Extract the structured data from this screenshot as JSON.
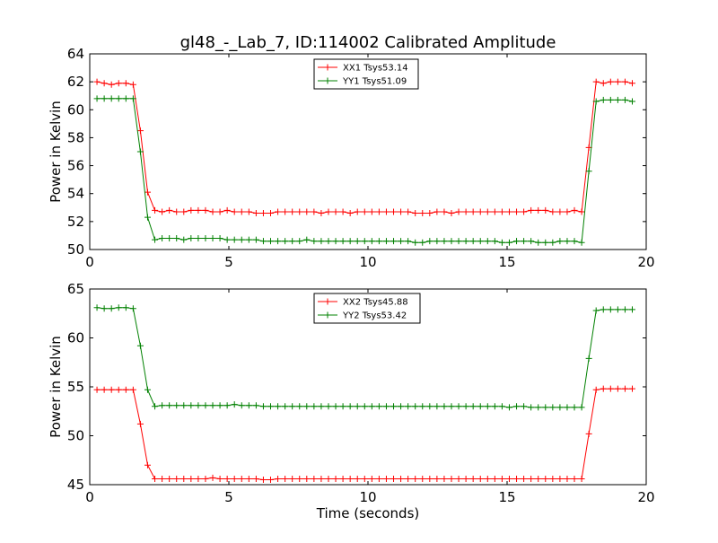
{
  "chart_data": [
    {
      "type": "line",
      "title": "gl48_-_Lab_7, ID:114002 Calibrated Amplitude",
      "xlabel": "",
      "ylabel": "Power in Kelvin",
      "xlim": [
        0,
        20
      ],
      "ylim": [
        50,
        64
      ],
      "xticks": [
        0,
        5,
        10,
        15,
        20
      ],
      "yticks": [
        50,
        52,
        54,
        56,
        58,
        60,
        62,
        64
      ],
      "grid": false,
      "legend_position": "top-center",
      "x": [
        0.26,
        0.52,
        0.78,
        1.04,
        1.3,
        1.56,
        1.82,
        2.08,
        2.34,
        2.6,
        2.86,
        3.12,
        3.38,
        3.64,
        3.9,
        4.16,
        4.42,
        4.68,
        4.94,
        5.2,
        5.46,
        5.72,
        5.98,
        6.24,
        6.5,
        6.76,
        7.02,
        7.28,
        7.54,
        7.8,
        8.06,
        8.32,
        8.58,
        8.84,
        9.1,
        9.36,
        9.62,
        9.88,
        10.14,
        10.4,
        10.66,
        10.92,
        11.18,
        11.44,
        11.7,
        11.96,
        12.22,
        12.48,
        12.74,
        13.0,
        13.26,
        13.52,
        13.78,
        14.04,
        14.3,
        14.56,
        14.82,
        15.08,
        15.34,
        15.6,
        15.86,
        16.12,
        16.38,
        16.64,
        16.9,
        17.16,
        17.42,
        17.68,
        17.94,
        18.2,
        18.46,
        18.72,
        18.98,
        19.24,
        19.5
      ],
      "series": [
        {
          "name": "XX1 Tsys53.14",
          "color": "#ff0000",
          "values": [
            62.0,
            61.9,
            61.8,
            61.9,
            61.9,
            61.8,
            58.5,
            54.1,
            52.8,
            52.7,
            52.8,
            52.7,
            52.7,
            52.8,
            52.8,
            52.8,
            52.7,
            52.7,
            52.8,
            52.7,
            52.7,
            52.7,
            52.6,
            52.6,
            52.6,
            52.7,
            52.7,
            52.7,
            52.7,
            52.7,
            52.7,
            52.6,
            52.7,
            52.7,
            52.7,
            52.6,
            52.7,
            52.7,
            52.7,
            52.7,
            52.7,
            52.7,
            52.7,
            52.7,
            52.6,
            52.6,
            52.6,
            52.7,
            52.7,
            52.6,
            52.7,
            52.7,
            52.7,
            52.7,
            52.7,
            52.7,
            52.7,
            52.7,
            52.7,
            52.7,
            52.8,
            52.8,
            52.8,
            52.7,
            52.7,
            52.7,
            52.8,
            52.7,
            57.3,
            62.0,
            61.9,
            62.0,
            62.0,
            62.0,
            61.9
          ]
        },
        {
          "name": "YY1 Tsys51.09",
          "color": "#008000",
          "values": [
            60.8,
            60.8,
            60.8,
            60.8,
            60.8,
            60.8,
            57.0,
            52.3,
            50.7,
            50.8,
            50.8,
            50.8,
            50.7,
            50.8,
            50.8,
            50.8,
            50.8,
            50.8,
            50.7,
            50.7,
            50.7,
            50.7,
            50.7,
            50.6,
            50.6,
            50.6,
            50.6,
            50.6,
            50.6,
            50.7,
            50.6,
            50.6,
            50.6,
            50.6,
            50.6,
            50.6,
            50.6,
            50.6,
            50.6,
            50.6,
            50.6,
            50.6,
            50.6,
            50.6,
            50.5,
            50.5,
            50.6,
            50.6,
            50.6,
            50.6,
            50.6,
            50.6,
            50.6,
            50.6,
            50.6,
            50.6,
            50.5,
            50.5,
            50.6,
            50.6,
            50.6,
            50.5,
            50.5,
            50.5,
            50.6,
            50.6,
            50.6,
            50.5,
            55.6,
            60.6,
            60.7,
            60.7,
            60.7,
            60.7,
            60.6
          ]
        }
      ]
    },
    {
      "type": "line",
      "title": "",
      "xlabel": "Time (seconds)",
      "ylabel": "Power in Kelvin",
      "xlim": [
        0,
        20
      ],
      "ylim": [
        45,
        65
      ],
      "xticks": [
        0,
        5,
        10,
        15,
        20
      ],
      "yticks": [
        45,
        50,
        55,
        60,
        65
      ],
      "grid": false,
      "legend_position": "top-center",
      "x": [
        0.26,
        0.52,
        0.78,
        1.04,
        1.3,
        1.56,
        1.82,
        2.08,
        2.34,
        2.6,
        2.86,
        3.12,
        3.38,
        3.64,
        3.9,
        4.16,
        4.42,
        4.68,
        4.94,
        5.2,
        5.46,
        5.72,
        5.98,
        6.24,
        6.5,
        6.76,
        7.02,
        7.28,
        7.54,
        7.8,
        8.06,
        8.32,
        8.58,
        8.84,
        9.1,
        9.36,
        9.62,
        9.88,
        10.14,
        10.4,
        10.66,
        10.92,
        11.18,
        11.44,
        11.7,
        11.96,
        12.22,
        12.48,
        12.74,
        13.0,
        13.26,
        13.52,
        13.78,
        14.04,
        14.3,
        14.56,
        14.82,
        15.08,
        15.34,
        15.6,
        15.86,
        16.12,
        16.38,
        16.64,
        16.9,
        17.16,
        17.42,
        17.68,
        17.94,
        18.2,
        18.46,
        18.72,
        18.98,
        19.24,
        19.5
      ],
      "series": [
        {
          "name": "XX2 Tsys45.88",
          "color": "#ff0000",
          "values": [
            54.7,
            54.7,
            54.7,
            54.7,
            54.7,
            54.7,
            51.2,
            47.0,
            45.6,
            45.6,
            45.6,
            45.6,
            45.6,
            45.6,
            45.6,
            45.6,
            45.7,
            45.6,
            45.6,
            45.6,
            45.6,
            45.6,
            45.6,
            45.5,
            45.5,
            45.6,
            45.6,
            45.6,
            45.6,
            45.6,
            45.6,
            45.6,
            45.6,
            45.6,
            45.6,
            45.6,
            45.6,
            45.6,
            45.6,
            45.6,
            45.6,
            45.6,
            45.6,
            45.6,
            45.6,
            45.6,
            45.6,
            45.6,
            45.6,
            45.6,
            45.6,
            45.6,
            45.6,
            45.6,
            45.6,
            45.6,
            45.6,
            45.6,
            45.6,
            45.6,
            45.6,
            45.6,
            45.6,
            45.6,
            45.6,
            45.6,
            45.6,
            45.6,
            50.2,
            54.7,
            54.8,
            54.8,
            54.8,
            54.8,
            54.8
          ]
        },
        {
          "name": "YY2 Tsys53.42",
          "color": "#008000",
          "values": [
            63.1,
            63.0,
            63.0,
            63.1,
            63.1,
            63.0,
            59.2,
            54.7,
            53.0,
            53.1,
            53.1,
            53.1,
            53.1,
            53.1,
            53.1,
            53.1,
            53.1,
            53.1,
            53.1,
            53.2,
            53.1,
            53.1,
            53.1,
            53.0,
            53.0,
            53.0,
            53.0,
            53.0,
            53.0,
            53.0,
            53.0,
            53.0,
            53.0,
            53.0,
            53.0,
            53.0,
            53.0,
            53.0,
            53.0,
            53.0,
            53.0,
            53.0,
            53.0,
            53.0,
            53.0,
            53.0,
            53.0,
            53.0,
            53.0,
            53.0,
            53.0,
            53.0,
            53.0,
            53.0,
            53.0,
            53.0,
            53.0,
            52.9,
            53.0,
            53.0,
            52.9,
            52.9,
            52.9,
            52.9,
            52.9,
            52.9,
            52.9,
            52.9,
            57.9,
            62.8,
            62.9,
            62.9,
            62.9,
            62.9,
            62.9
          ]
        }
      ]
    }
  ]
}
